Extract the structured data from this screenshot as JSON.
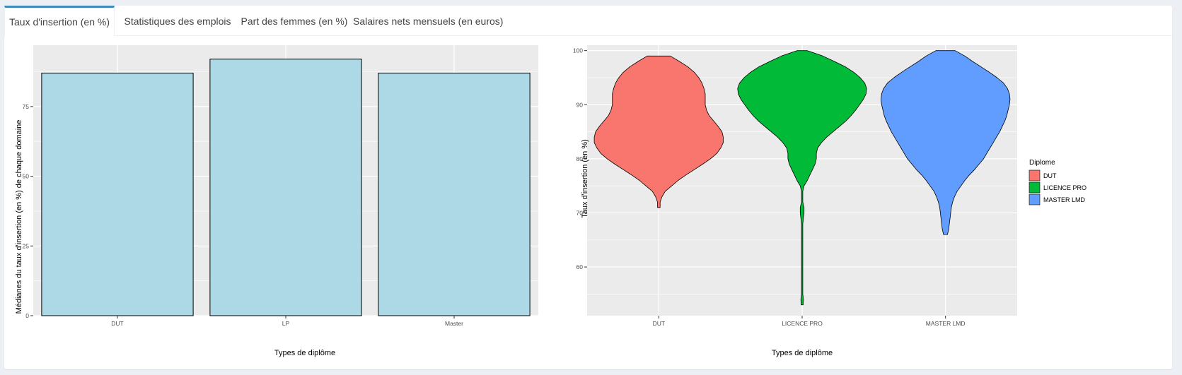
{
  "tabs": [
    {
      "label": "Taux d'insertion (en %)",
      "active": true
    },
    {
      "label": "Statistiques des emplois",
      "active": false
    },
    {
      "label": "Part des femmes (en %)",
      "active": false
    },
    {
      "label": "Salaires nets mensuels (en euros)",
      "active": false
    }
  ],
  "colors": {
    "panel_bg": "#ebebeb",
    "grid": "#ffffff",
    "bar_fill": "#add8e6",
    "DUT": "#f8766d",
    "LICENCE PRO": "#00ba38",
    "MASTER LMD": "#619cff",
    "tab_accent": "#3c8dbc"
  },
  "chart_data": [
    {
      "type": "bar",
      "categories": [
        "DUT",
        "LP",
        "Master"
      ],
      "values": [
        87,
        92,
        87
      ],
      "xlabel": "Types de diplôme",
      "ylabel": "Médianes du taux d'insertion (en %) de chaque domaine",
      "ylim": [
        0,
        97
      ],
      "yticks": [
        0,
        25,
        50,
        75
      ],
      "grid": true
    },
    {
      "type": "violin",
      "categories": [
        "DUT",
        "LICENCE PRO",
        "MASTER LMD"
      ],
      "xlabel": "Types de diplôme",
      "ylabel": "Taux d'insertion (en %)",
      "ylim": [
        51,
        101
      ],
      "yticks": [
        60,
        70,
        80,
        90,
        100
      ],
      "grid": true,
      "legend": {
        "title": "Diplome",
        "position": "right",
        "items": [
          "DUT",
          "LICENCE PRO",
          "MASTER LMD"
        ]
      },
      "series": [
        {
          "name": "DUT",
          "min": 71,
          "max": 99,
          "profile": [
            [
              71,
              0.02
            ],
            [
              72,
              0.02
            ],
            [
              73,
              0.05
            ],
            [
              74,
              0.1
            ],
            [
              75,
              0.2
            ],
            [
              76,
              0.3
            ],
            [
              77,
              0.42
            ],
            [
              78,
              0.55
            ],
            [
              79,
              0.68
            ],
            [
              80,
              0.8
            ],
            [
              81,
              0.9
            ],
            [
              82,
              0.96
            ],
            [
              83,
              1.0
            ],
            [
              84,
              1.0
            ],
            [
              85,
              0.98
            ],
            [
              86,
              0.92
            ],
            [
              87,
              0.85
            ],
            [
              88,
              0.78
            ],
            [
              89,
              0.74
            ],
            [
              90,
              0.72
            ],
            [
              91,
              0.72
            ],
            [
              92,
              0.72
            ],
            [
              93,
              0.7
            ],
            [
              94,
              0.67
            ],
            [
              95,
              0.62
            ],
            [
              96,
              0.55
            ],
            [
              97,
              0.45
            ],
            [
              98,
              0.32
            ],
            [
              99,
              0.18
            ]
          ]
        },
        {
          "name": "LICENCE PRO",
          "min": 53,
          "max": 100,
          "profile": [
            [
              53,
              0.015
            ],
            [
              54,
              0.02
            ],
            [
              55,
              0.01
            ],
            [
              56,
              0.01
            ],
            [
              58,
              0.01
            ],
            [
              60,
              0.01
            ],
            [
              62,
              0.01
            ],
            [
              64,
              0.01
            ],
            [
              66,
              0.01
            ],
            [
              68,
              0.01
            ],
            [
              69,
              0.02
            ],
            [
              70,
              0.03
            ],
            [
              71,
              0.03
            ],
            [
              72,
              0.01
            ],
            [
              74,
              0.01
            ],
            [
              75,
              0.03
            ],
            [
              76,
              0.08
            ],
            [
              77,
              0.12
            ],
            [
              78,
              0.16
            ],
            [
              79,
              0.2
            ],
            [
              80,
              0.22
            ],
            [
              81,
              0.22
            ],
            [
              82,
              0.24
            ],
            [
              83,
              0.3
            ],
            [
              84,
              0.38
            ],
            [
              85,
              0.48
            ],
            [
              86,
              0.58
            ],
            [
              87,
              0.68
            ],
            [
              88,
              0.76
            ],
            [
              89,
              0.83
            ],
            [
              90,
              0.89
            ],
            [
              91,
              0.95
            ],
            [
              92,
              0.99
            ],
            [
              93,
              1.0
            ],
            [
              94,
              0.97
            ],
            [
              95,
              0.9
            ],
            [
              96,
              0.8
            ],
            [
              97,
              0.67
            ],
            [
              98,
              0.5
            ],
            [
              99,
              0.32
            ],
            [
              100,
              0.08
            ]
          ]
        },
        {
          "name": "MASTER LMD",
          "min": 66,
          "max": 100,
          "profile": [
            [
              66,
              0.03
            ],
            [
              67,
              0.05
            ],
            [
              68,
              0.06
            ],
            [
              69,
              0.07
            ],
            [
              70,
              0.08
            ],
            [
              71,
              0.09
            ],
            [
              72,
              0.11
            ],
            [
              73,
              0.14
            ],
            [
              74,
              0.18
            ],
            [
              75,
              0.24
            ],
            [
              76,
              0.3
            ],
            [
              77,
              0.37
            ],
            [
              78,
              0.45
            ],
            [
              79,
              0.52
            ],
            [
              80,
              0.59
            ],
            [
              81,
              0.64
            ],
            [
              82,
              0.69
            ],
            [
              83,
              0.74
            ],
            [
              84,
              0.79
            ],
            [
              85,
              0.84
            ],
            [
              86,
              0.88
            ],
            [
              87,
              0.92
            ],
            [
              88,
              0.95
            ],
            [
              89,
              0.97
            ],
            [
              90,
              0.99
            ],
            [
              91,
              1.0
            ],
            [
              92,
              0.99
            ],
            [
              93,
              0.96
            ],
            [
              94,
              0.9
            ],
            [
              95,
              0.8
            ],
            [
              96,
              0.68
            ],
            [
              97,
              0.55
            ],
            [
              98,
              0.42
            ],
            [
              99,
              0.3
            ],
            [
              100,
              0.15
            ]
          ]
        }
      ]
    }
  ]
}
